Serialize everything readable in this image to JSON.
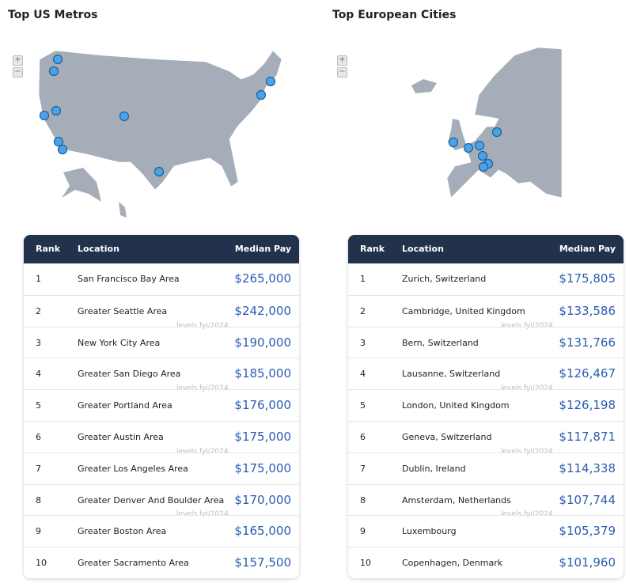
{
  "panels": [
    {
      "title": "Top US Metros",
      "zoom_in": "+",
      "zoom_out": "−",
      "table": {
        "header": [
          "Rank",
          "Location",
          "Median Pay"
        ],
        "watermark": "levels.fyi/2024",
        "rows": [
          [
            1,
            "San Francisco Bay Area",
            "$265,000"
          ],
          [
            2,
            "Greater Seattle Area",
            "$242,000"
          ],
          [
            3,
            "New York City Area",
            "$190,000"
          ],
          [
            4,
            "Greater San Diego Area",
            "$185,000"
          ],
          [
            5,
            "Greater Portland Area",
            "$176,000"
          ],
          [
            6,
            "Greater Austin Area",
            "$175,000"
          ],
          [
            7,
            "Greater Los Angeles Area",
            "$175,000"
          ],
          [
            8,
            "Greater Denver And Boulder Area",
            "$170,000"
          ],
          [
            9,
            "Greater Boston Area",
            "$165,000"
          ],
          [
            10,
            "Greater Sacramento Area",
            "$157,500"
          ]
        ]
      }
    },
    {
      "title": "Top European Cities",
      "zoom_in": "+",
      "zoom_out": "−",
      "table": {
        "header": [
          "Rank",
          "Location",
          "Median Pay"
        ],
        "watermark": "levels.fyi/2024",
        "rows": [
          [
            1,
            "Zurich, Switzerland",
            "$175,805"
          ],
          [
            2,
            "Cambridge, United Kingdom",
            "$133,586"
          ],
          [
            3,
            "Bern, Switzerland",
            "$131,766"
          ],
          [
            4,
            "Lausanne, Switzerland",
            "$126,467"
          ],
          [
            5,
            "London, United Kingdom",
            "$126,198"
          ],
          [
            6,
            "Geneva, Switzerland",
            "$117,871"
          ],
          [
            7,
            "Dublin, Ireland",
            "$114,338"
          ],
          [
            8,
            "Amsterdam, Netherlands",
            "$107,744"
          ],
          [
            9,
            "Luxembourg",
            "$105,379"
          ],
          [
            10,
            "Copenhagen, Denmark",
            "$101,960"
          ]
        ]
      }
    }
  ]
}
